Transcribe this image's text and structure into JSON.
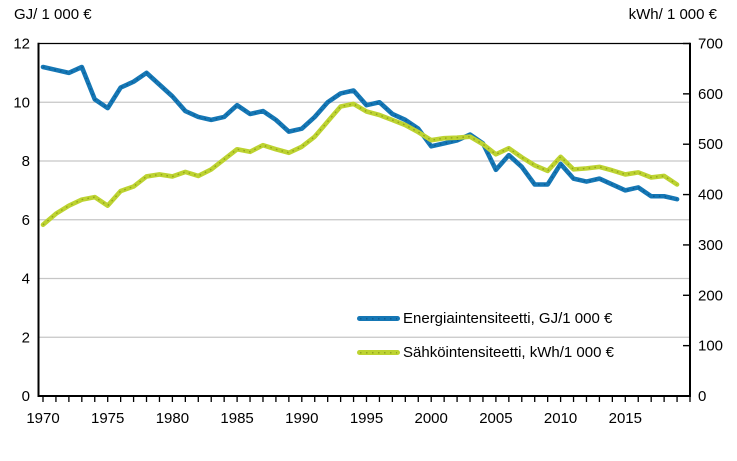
{
  "chart_data": {
    "type": "line",
    "left_axis_title": "GJ/ 1 000 €",
    "right_axis_title": "kWh/ 1 000 €",
    "grid": "horizontal",
    "legend_position": "inside-bottom-right",
    "colors": {
      "grid": "#c6c6c6",
      "axis": "#000000",
      "background": "#ffffff",
      "text": "#000000"
    },
    "x": [
      1970,
      1971,
      1972,
      1973,
      1974,
      1975,
      1976,
      1977,
      1978,
      1979,
      1980,
      1981,
      1982,
      1983,
      1984,
      1985,
      1986,
      1987,
      1988,
      1989,
      1990,
      1991,
      1992,
      1993,
      1994,
      1995,
      1996,
      1997,
      1998,
      1999,
      2000,
      2001,
      2002,
      2003,
      2004,
      2005,
      2006,
      2007,
      2008,
      2009,
      2010,
      2011,
      2012,
      2013,
      2014,
      2015,
      2016,
      2017,
      2018,
      2019
    ],
    "series": [
      {
        "key": "energy-intensity",
        "name": "Energiaintensiteetti, GJ/1 000 €",
        "axis": "left",
        "color": "#1577b5",
        "dot_color": "#0d5c94",
        "values": [
          11.2,
          11.1,
          11.0,
          11.2,
          10.1,
          9.8,
          10.5,
          10.7,
          11.0,
          10.6,
          10.2,
          9.7,
          9.5,
          9.4,
          9.5,
          9.9,
          9.6,
          9.7,
          9.4,
          9.0,
          9.1,
          9.5,
          10.0,
          10.3,
          10.4,
          9.9,
          10.0,
          9.6,
          9.4,
          9.1,
          8.5,
          8.6,
          8.7,
          8.9,
          8.6,
          7.7,
          8.2,
          7.8,
          7.2,
          7.2,
          7.9,
          7.4,
          7.3,
          7.4,
          7.2,
          7.0,
          7.1,
          6.8,
          6.8,
          6.7
        ]
      },
      {
        "key": "electricity-intensity",
        "name": "Sähköintensiteetti, kWh/1 000 €",
        "axis": "right",
        "color": "#bdd331",
        "dot_color": "#93a51d",
        "values": [
          340,
          362,
          378,
          390,
          395,
          378,
          407,
          416,
          436,
          440,
          436,
          445,
          437,
          450,
          470,
          490,
          485,
          498,
          490,
          483,
          495,
          515,
          545,
          575,
          580,
          565,
          558,
          548,
          538,
          524,
          508,
          512,
          513,
          515,
          500,
          480,
          492,
          474,
          458,
          447,
          475,
          450,
          452,
          455,
          448,
          440,
          444,
          434,
          437,
          420
        ]
      }
    ],
    "left_axis": {
      "min": 0,
      "max": 12,
      "tick_step": 2,
      "tick_values": [
        0,
        2,
        4,
        6,
        8,
        10,
        12
      ],
      "tick_labels": [
        "0",
        "2",
        "4",
        "6",
        "8",
        "10",
        "12"
      ]
    },
    "right_axis": {
      "min": 0,
      "max": 700,
      "tick_step": 100,
      "tick_values": [
        0,
        100,
        200,
        300,
        400,
        500,
        600,
        700
      ],
      "tick_labels": [
        "0",
        "100",
        "200",
        "300",
        "400",
        "500",
        "600",
        "700"
      ]
    },
    "x_axis": {
      "min": 1970,
      "max": 2020,
      "minor_tick_step": 1,
      "label_step": 5,
      "tick_labels": [
        "1970",
        "1975",
        "1980",
        "1985",
        "1990",
        "1995",
        "2000",
        "2005",
        "2010",
        "2015"
      ]
    }
  }
}
